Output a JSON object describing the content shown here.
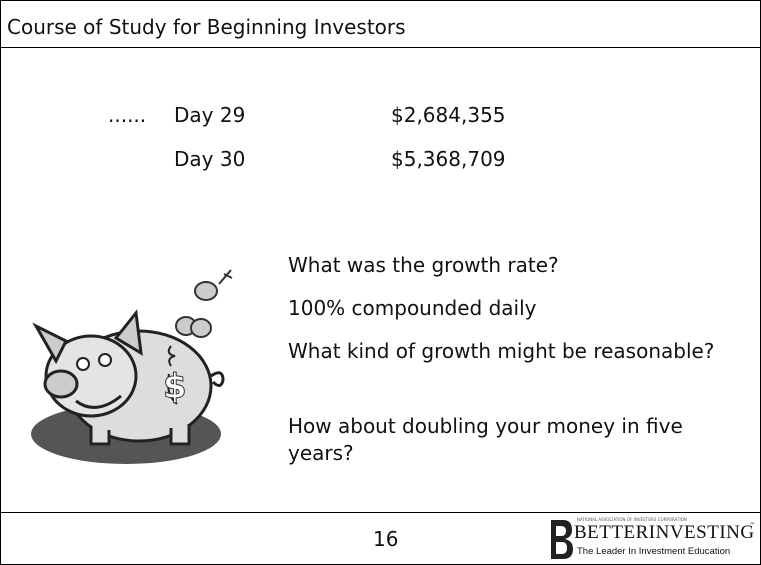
{
  "header": {
    "title": "Course of Study for Beginning Investors"
  },
  "rows": [
    {
      "prefix": "......",
      "day": "Day 29",
      "amount": "$2,684,355"
    },
    {
      "prefix": "",
      "day": "Day 30",
      "amount": "$5,368,709"
    }
  ],
  "questions": [
    "What was the growth rate?",
    "100% compounded daily",
    "What kind of growth might be reasonable?",
    "How about doubling your money in five years?"
  ],
  "footer": {
    "page": "16",
    "logo": {
      "top": "NATIONAL ASSOCIATION OF INVESTORS CORPORATION",
      "name": "BETTERINVESTING",
      "tm": "™",
      "tagline": "The Leader In Investment Education"
    }
  }
}
